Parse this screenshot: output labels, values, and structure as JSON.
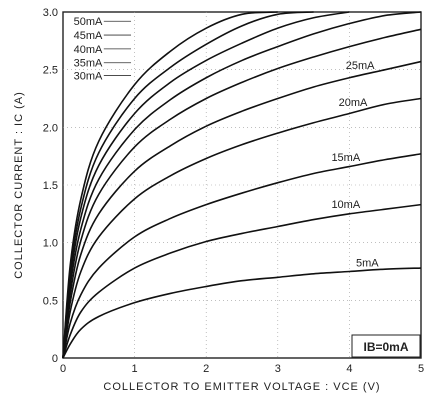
{
  "chart_data": {
    "type": "line",
    "xlabel": "COLLECTOR TO EMITTER VOLTAGE : VCE (V)",
    "ylabel": "COLLECTOR CURRENT : IC (A)",
    "xlim": [
      0,
      5
    ],
    "ylim": [
      0,
      3.0
    ],
    "x_ticks": [
      "0",
      "1",
      "2",
      "3",
      "4",
      "5"
    ],
    "y_ticks": [
      "0",
      "0.5",
      "1.0",
      "1.5",
      "2.0",
      "2.5",
      "3.0"
    ],
    "grid": true,
    "legend": "inline-labels",
    "annotation": "IB=0mA",
    "series": [
      {
        "name": "5mA",
        "x": [
          0,
          0.1,
          0.25,
          0.5,
          1,
          1.5,
          2,
          2.5,
          3,
          3.5,
          4,
          4.5,
          5
        ],
        "y": [
          0,
          0.12,
          0.25,
          0.36,
          0.48,
          0.56,
          0.62,
          0.67,
          0.7,
          0.73,
          0.75,
          0.77,
          0.78
        ]
      },
      {
        "name": "10mA",
        "x": [
          0,
          0.1,
          0.25,
          0.5,
          1,
          1.5,
          2,
          2.5,
          3,
          3.5,
          4,
          4.5,
          5
        ],
        "y": [
          0,
          0.2,
          0.4,
          0.57,
          0.78,
          0.91,
          1.01,
          1.08,
          1.14,
          1.2,
          1.25,
          1.29,
          1.33
        ]
      },
      {
        "name": "15mA",
        "x": [
          0,
          0.1,
          0.25,
          0.5,
          1,
          1.5,
          2,
          2.5,
          3,
          3.5,
          4,
          4.5,
          5
        ],
        "y": [
          0,
          0.3,
          0.55,
          0.78,
          1.05,
          1.21,
          1.33,
          1.43,
          1.52,
          1.6,
          1.66,
          1.72,
          1.77
        ]
      },
      {
        "name": "20mA",
        "x": [
          0,
          0.1,
          0.25,
          0.5,
          1,
          1.5,
          2,
          2.5,
          3,
          3.5,
          4,
          4.5,
          5
        ],
        "y": [
          0,
          0.4,
          0.75,
          1.05,
          1.38,
          1.58,
          1.73,
          1.85,
          1.95,
          2.04,
          2.12,
          2.2,
          2.25
        ]
      },
      {
        "name": "25mA",
        "x": [
          0,
          0.1,
          0.25,
          0.5,
          1,
          1.5,
          2,
          2.5,
          3,
          3.5,
          4,
          4.5,
          5
        ],
        "y": [
          0,
          0.48,
          0.9,
          1.25,
          1.62,
          1.84,
          2.01,
          2.14,
          2.25,
          2.35,
          2.43,
          2.5,
          2.57
        ]
      },
      {
        "name": "30mA",
        "x": [
          0,
          0.1,
          0.25,
          0.5,
          1,
          1.5,
          2,
          2.5,
          3,
          3.5,
          4,
          4.5,
          5
        ],
        "y": [
          0,
          0.55,
          1.02,
          1.42,
          1.83,
          2.07,
          2.25,
          2.39,
          2.51,
          2.61,
          2.7,
          2.78,
          2.85
        ]
      },
      {
        "name": "35mA",
        "x": [
          0,
          0.1,
          0.25,
          0.5,
          1,
          1.5,
          2,
          2.5,
          3,
          3.5,
          4,
          4.5,
          5
        ],
        "y": [
          0,
          0.62,
          1.12,
          1.55,
          1.98,
          2.24,
          2.43,
          2.58,
          2.7,
          2.81,
          2.9,
          2.97,
          3.0
        ]
      },
      {
        "name": "40mA",
        "x": [
          0,
          0.1,
          0.25,
          0.5,
          1,
          1.5,
          2,
          2.5,
          3,
          3.5,
          4
        ],
        "y": [
          0,
          0.68,
          1.22,
          1.67,
          2.12,
          2.39,
          2.58,
          2.73,
          2.86,
          2.95,
          3.0
        ]
      },
      {
        "name": "45mA",
        "x": [
          0,
          0.1,
          0.25,
          0.5,
          1,
          1.5,
          2,
          2.5,
          3,
          3.5
        ],
        "y": [
          0,
          0.74,
          1.3,
          1.78,
          2.25,
          2.52,
          2.72,
          2.88,
          2.98,
          3.0
        ]
      },
      {
        "name": "50mA",
        "x": [
          0,
          0.1,
          0.25,
          0.5,
          1,
          1.5,
          2,
          2.5,
          3
        ],
        "y": [
          0,
          0.8,
          1.38,
          1.88,
          2.37,
          2.66,
          2.86,
          2.98,
          3.0
        ]
      }
    ]
  }
}
